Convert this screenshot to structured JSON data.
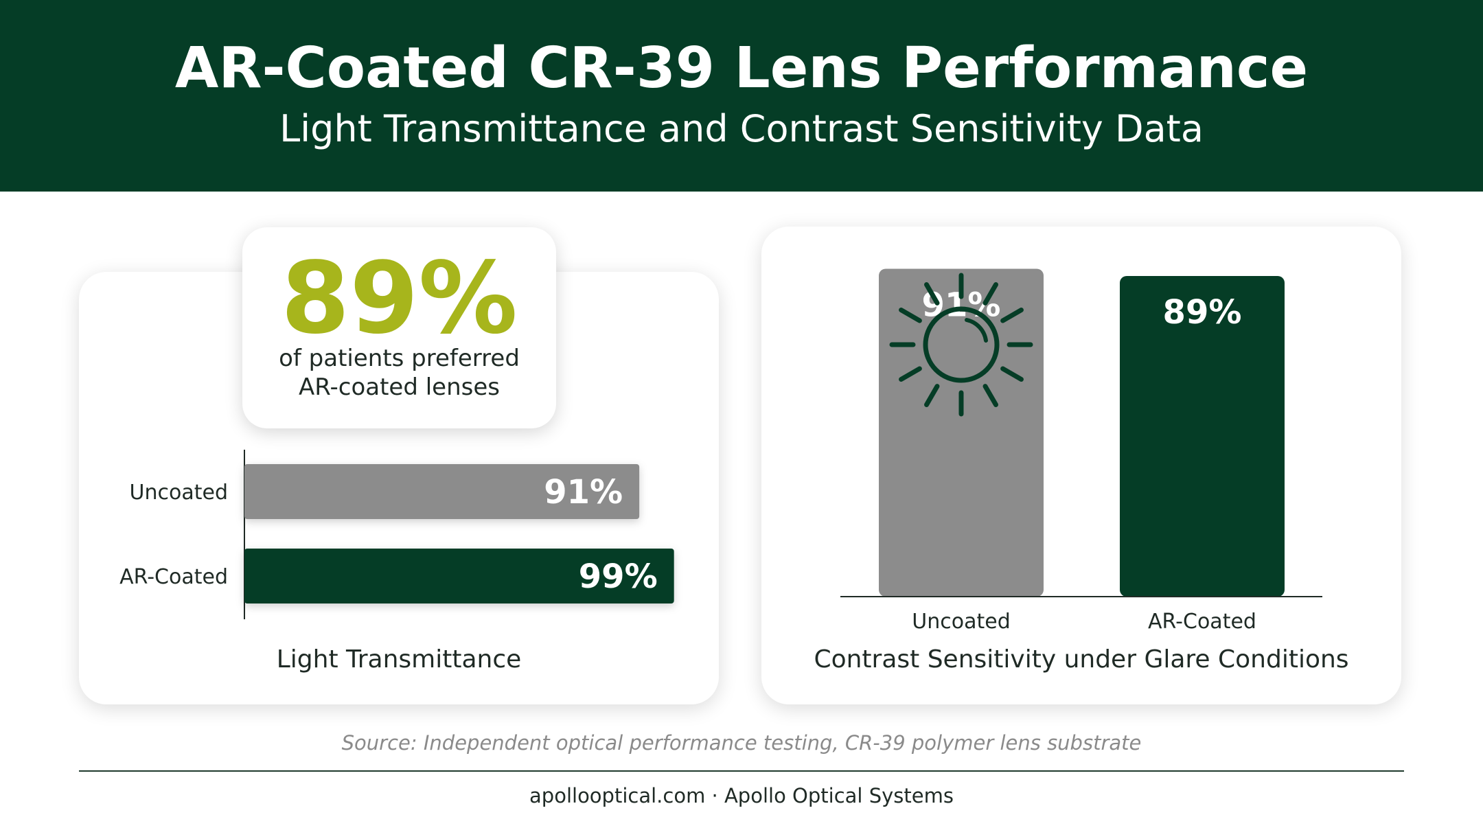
{
  "header": {
    "title": "AR-Coated CR-39 Lens Performance",
    "subtitle": "Light Transmittance and Contrast Sensitivity Data"
  },
  "highlight": {
    "value": "89%",
    "line1": "of patients preferred",
    "line2": "AR-coated lenses"
  },
  "colors": {
    "header_bg": "#053d26",
    "accent": "#a7b51c",
    "uncoated": "#8c8c8c",
    "ar_coated": "#053d26"
  },
  "icons": {
    "glare": "sun-icon"
  },
  "chart_data": [
    {
      "type": "bar",
      "orientation": "horizontal",
      "xlabel": "Light Transmittance",
      "categories": [
        "Uncoated",
        "AR-Coated"
      ],
      "values": [
        91,
        99
      ],
      "labels": [
        "91%",
        "99%"
      ],
      "xlim": [
        0,
        100
      ],
      "grid": false
    },
    {
      "type": "bar",
      "orientation": "vertical",
      "xlabel": "Contrast Sensitivity under Glare Conditions",
      "categories": [
        "Uncoated",
        "AR-Coated"
      ],
      "values": [
        91,
        89
      ],
      "labels": [
        "91%",
        "89%"
      ],
      "grid": false
    }
  ],
  "source": "Source: Independent optical performance testing, CR-39 polymer lens substrate",
  "footer": "apollooptical.com · Apollo Optical Systems"
}
